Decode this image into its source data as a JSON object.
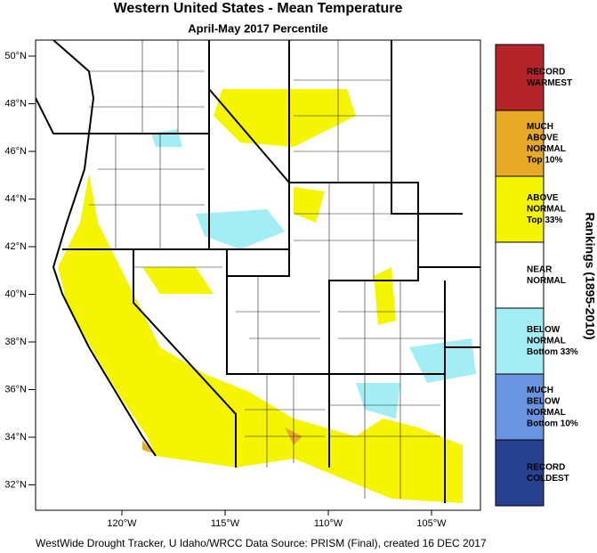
{
  "title": "Western United States - Mean Temperature",
  "subtitle": "April-May 2017 Percentile",
  "lat_labels": [
    "50°N",
    "48°N",
    "46°N",
    "44°N",
    "42°N",
    "40°N",
    "38°N",
    "36°N",
    "34°N",
    "32°N"
  ],
  "lon_labels": [
    "120°W",
    "115°W",
    "110°W",
    "105°W"
  ],
  "legend": {
    "title": "Rankings (1895-2010)",
    "entries": [
      {
        "lines": [
          "RECORD",
          "WARMEST"
        ],
        "color": "#b3252b"
      },
      {
        "lines": [
          "MUCH",
          "ABOVE",
          "NORMAL",
          "Top 10%"
        ],
        "color": "#e8a927"
      },
      {
        "lines": [
          "ABOVE",
          "NORMAL",
          "Top 33%"
        ],
        "color": "#f5f500"
      },
      {
        "lines": [
          "NEAR",
          "NORMAL"
        ],
        "color": "#ffffff"
      },
      {
        "lines": [
          "BELOW",
          "NORMAL",
          "Bottom 33%"
        ],
        "color": "#a2eef4"
      },
      {
        "lines": [
          "MUCH",
          "BELOW",
          "NORMAL",
          "Bottom 10%"
        ],
        "color": "#6a94df"
      },
      {
        "lines": [
          "RECORD",
          "COLDEST"
        ],
        "color": "#27408f"
      }
    ]
  },
  "footer": "WestWide Drought Tracker, U Idaho/WRCC Data Source: PRISM (Final), created 16 DEC 2017"
}
